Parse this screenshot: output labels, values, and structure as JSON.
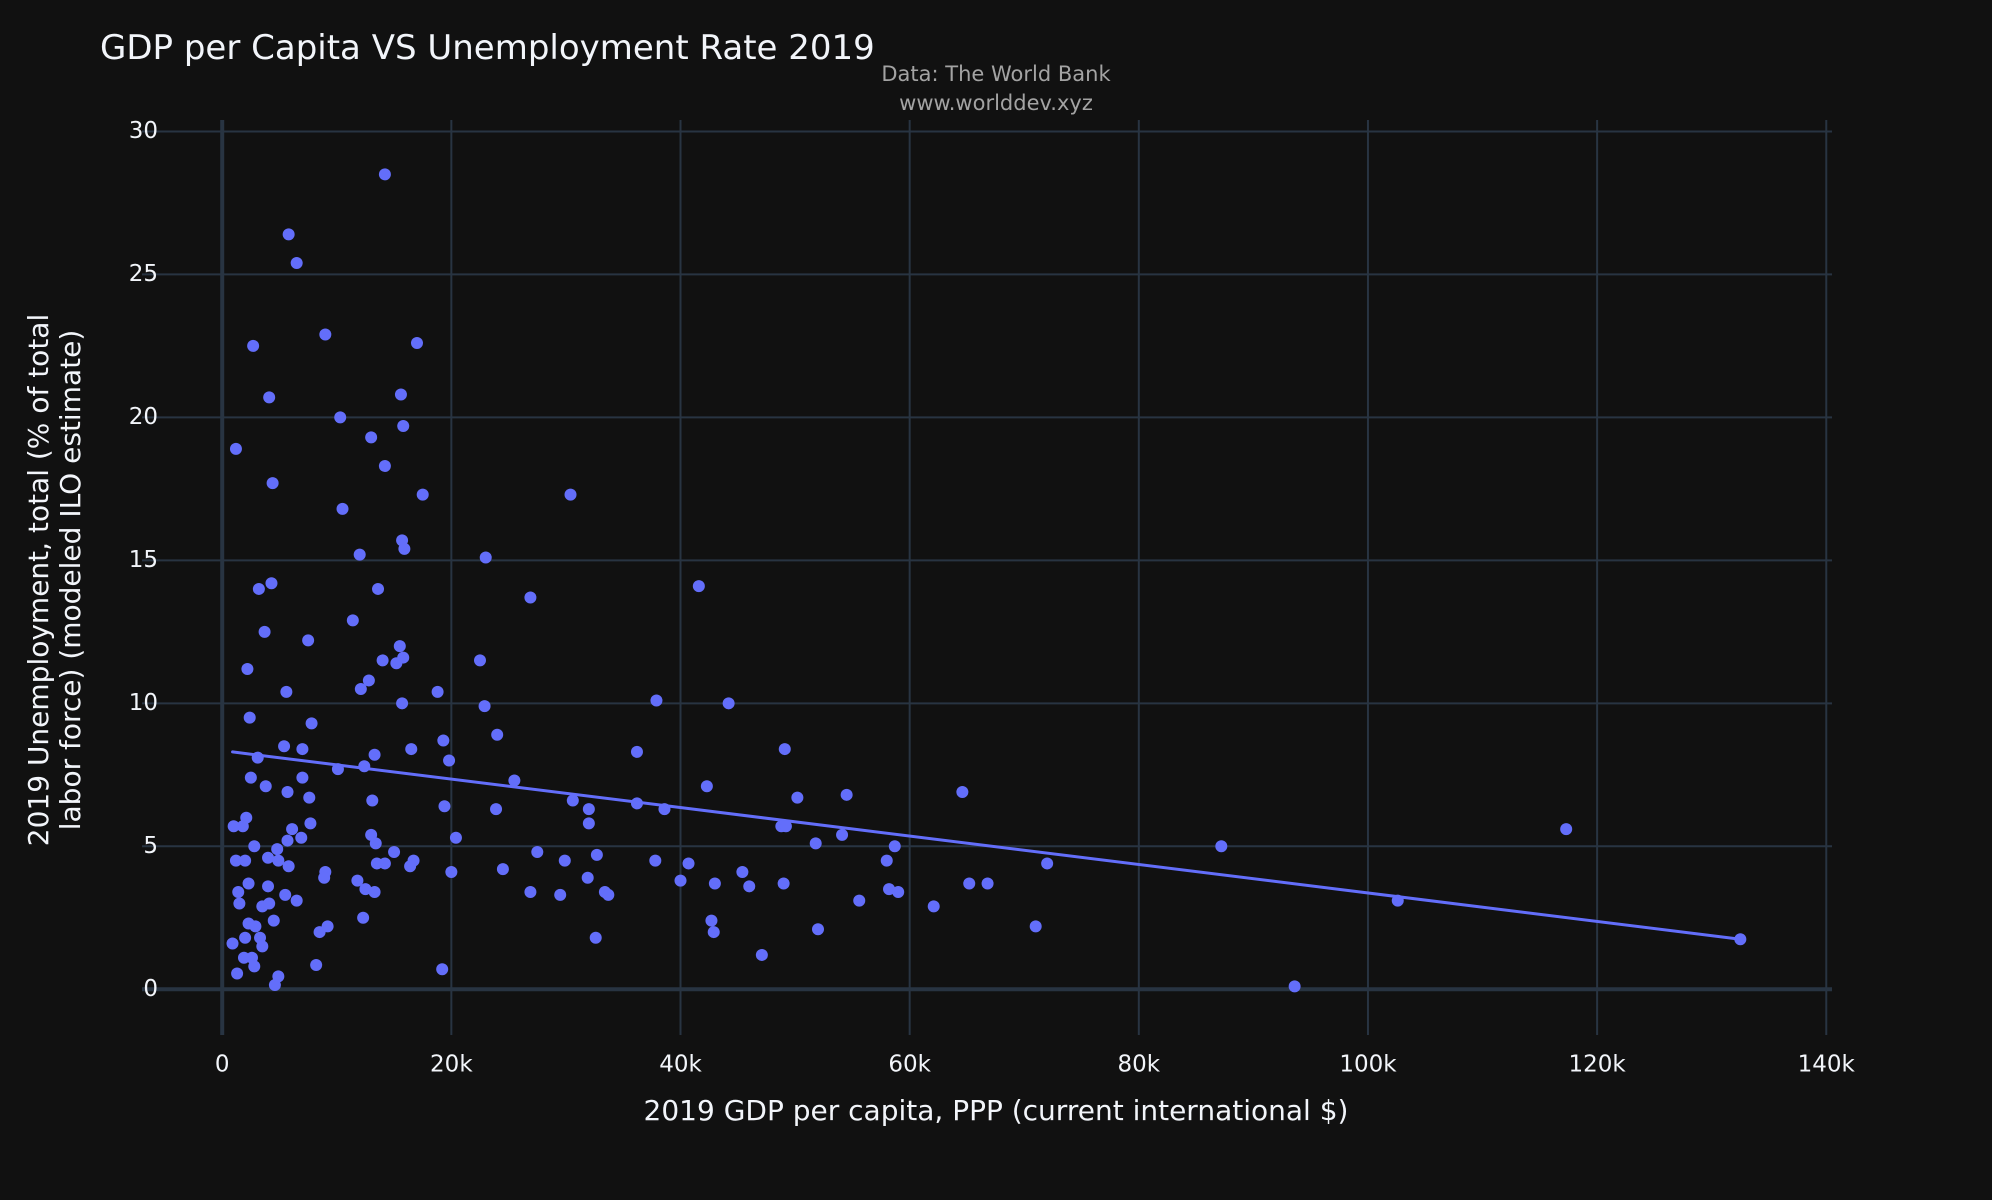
{
  "chart_data": {
    "type": "scatter",
    "title": "GDP per Capita VS Unemployment Rate 2019",
    "source": {
      "line1": "Data: The World Bank",
      "line2": "www.worlddev.xyz"
    },
    "xlabel": "2019 GDP per capita, PPP (current international $)",
    "ylabel_line1": "2019 Unemployment, total (% of total",
    "ylabel_line2": "labor force) (modeled ILO estimate)",
    "xlim": [
      -7000,
      140500
    ],
    "ylim": [
      -1.6,
      30.4
    ],
    "x_ticks": [
      0,
      20000,
      40000,
      60000,
      80000,
      100000,
      120000,
      140000
    ],
    "x_tick_labels": [
      "0",
      "20k",
      "40k",
      "60k",
      "80k",
      "100k",
      "120k",
      "140k"
    ],
    "y_ticks": [
      0,
      5,
      10,
      15,
      20,
      25,
      30
    ],
    "y_tick_labels": [
      "0",
      "5",
      "10",
      "15",
      "20",
      "25",
      "30"
    ],
    "grid": true,
    "colors": {
      "background": "#111111",
      "grid": "#283442",
      "marker": "#636efa",
      "trendline": "#636efa",
      "text": "#f2f5fa",
      "source_text": "#a3a3a3"
    },
    "trendline": {
      "x": [
        900,
        132500
      ],
      "y": [
        8.3,
        1.75
      ]
    },
    "series": [
      {
        "points": [
          [
            14200,
            28.5
          ],
          [
            5800,
            26.4
          ],
          [
            6500,
            25.4
          ],
          [
            9000,
            22.9
          ],
          [
            17000,
            22.6
          ],
          [
            2700,
            22.5
          ],
          [
            15600,
            20.8
          ],
          [
            4100,
            20.7
          ],
          [
            10300,
            20.0
          ],
          [
            15800,
            19.7
          ],
          [
            13000,
            19.3
          ],
          [
            1200,
            18.9
          ],
          [
            14200,
            18.3
          ],
          [
            4400,
            17.7
          ],
          [
            17500,
            17.3
          ],
          [
            30400,
            17.3
          ],
          [
            10500,
            16.8
          ],
          [
            15700,
            15.7
          ],
          [
            15900,
            15.4
          ],
          [
            12000,
            15.2
          ],
          [
            23000,
            15.1
          ],
          [
            4300,
            14.2
          ],
          [
            41600,
            14.1
          ],
          [
            3200,
            14.0
          ],
          [
            13600,
            14.0
          ],
          [
            26900,
            13.7
          ],
          [
            11400,
            12.9
          ],
          [
            3700,
            12.5
          ],
          [
            7500,
            12.2
          ],
          [
            15500,
            12.0
          ],
          [
            15800,
            11.6
          ],
          [
            14000,
            11.5
          ],
          [
            22500,
            11.5
          ],
          [
            15200,
            11.4
          ],
          [
            2200,
            11.2
          ],
          [
            12800,
            10.8
          ],
          [
            12100,
            10.5
          ],
          [
            5600,
            10.4
          ],
          [
            18800,
            10.4
          ],
          [
            37900,
            10.1
          ],
          [
            15700,
            10.0
          ],
          [
            44200,
            10.0
          ],
          [
            22900,
            9.9
          ],
          [
            2400,
            9.5
          ],
          [
            7800,
            9.3
          ],
          [
            24000,
            8.9
          ],
          [
            19300,
            8.7
          ],
          [
            5400,
            8.5
          ],
          [
            7000,
            8.4
          ],
          [
            16500,
            8.4
          ],
          [
            49100,
            8.4
          ],
          [
            36200,
            8.3
          ],
          [
            13300,
            8.2
          ],
          [
            3100,
            8.1
          ],
          [
            19800,
            8.0
          ],
          [
            12400,
            7.8
          ],
          [
            10100,
            7.7
          ],
          [
            2500,
            7.4
          ],
          [
            7000,
            7.4
          ],
          [
            25500,
            7.3
          ],
          [
            3800,
            7.1
          ],
          [
            42300,
            7.1
          ],
          [
            5700,
            6.9
          ],
          [
            64600,
            6.9
          ],
          [
            54500,
            6.8
          ],
          [
            7600,
            6.7
          ],
          [
            50200,
            6.7
          ],
          [
            30600,
            6.6
          ],
          [
            13100,
            6.6
          ],
          [
            36200,
            6.5
          ],
          [
            19400,
            6.4
          ],
          [
            23900,
            6.3
          ],
          [
            32000,
            6.3
          ],
          [
            38600,
            6.3
          ],
          [
            2100,
            6.0
          ],
          [
            7700,
            5.8
          ],
          [
            32000,
            5.8
          ],
          [
            1000,
            5.7
          ],
          [
            1800,
            5.7
          ],
          [
            6100,
            5.6
          ],
          [
            48800,
            5.7
          ],
          [
            49200,
            5.7
          ],
          [
            20400,
            5.3
          ],
          [
            54100,
            5.4
          ],
          [
            13000,
            5.4
          ],
          [
            51800,
            5.1
          ],
          [
            6900,
            5.3
          ],
          [
            5700,
            5.2
          ],
          [
            13400,
            5.1
          ],
          [
            58700,
            5.0
          ],
          [
            87200,
            5.0
          ],
          [
            2800,
            5.0
          ],
          [
            4800,
            4.9
          ],
          [
            15000,
            4.8
          ],
          [
            27500,
            4.8
          ],
          [
            32700,
            4.7
          ],
          [
            4000,
            4.6
          ],
          [
            1200,
            4.5
          ],
          [
            2000,
            4.5
          ],
          [
            4900,
            4.5
          ],
          [
            16700,
            4.5
          ],
          [
            29900,
            4.5
          ],
          [
            37800,
            4.5
          ],
          [
            40700,
            4.4
          ],
          [
            58000,
            4.5
          ],
          [
            72000,
            4.4
          ],
          [
            117300,
            5.6
          ],
          [
            13500,
            4.4
          ],
          [
            14200,
            4.4
          ],
          [
            5800,
            4.3
          ],
          [
            16400,
            4.3
          ],
          [
            24500,
            4.2
          ],
          [
            9000,
            4.1
          ],
          [
            20000,
            4.1
          ],
          [
            45400,
            4.1
          ],
          [
            8900,
            3.9
          ],
          [
            11800,
            3.8
          ],
          [
            31900,
            3.9
          ],
          [
            40000,
            3.8
          ],
          [
            43000,
            3.7
          ],
          [
            49000,
            3.7
          ],
          [
            46000,
            3.6
          ],
          [
            65200,
            3.7
          ],
          [
            66800,
            3.7
          ],
          [
            2300,
            3.7
          ],
          [
            4000,
            3.6
          ],
          [
            12500,
            3.5
          ],
          [
            1400,
            3.4
          ],
          [
            13300,
            3.4
          ],
          [
            26900,
            3.4
          ],
          [
            33400,
            3.4
          ],
          [
            33700,
            3.3
          ],
          [
            29500,
            3.3
          ],
          [
            58200,
            3.5
          ],
          [
            59000,
            3.4
          ],
          [
            5500,
            3.3
          ],
          [
            6500,
            3.1
          ],
          [
            4100,
            3.0
          ],
          [
            1500,
            3.0
          ],
          [
            3500,
            2.9
          ],
          [
            55600,
            3.1
          ],
          [
            62100,
            2.9
          ],
          [
            102600,
            3.1
          ],
          [
            4500,
            2.4
          ],
          [
            12300,
            2.5
          ],
          [
            42700,
            2.4
          ],
          [
            2300,
            2.3
          ],
          [
            9200,
            2.2
          ],
          [
            2900,
            2.2
          ],
          [
            52000,
            2.1
          ],
          [
            71000,
            2.2
          ],
          [
            8500,
            2.0
          ],
          [
            42900,
            2.0
          ],
          [
            2000,
            1.8
          ],
          [
            3300,
            1.8
          ],
          [
            32600,
            1.8
          ],
          [
            900,
            1.6
          ],
          [
            3500,
            1.5
          ],
          [
            1900,
            1.1
          ],
          [
            2600,
            1.1
          ],
          [
            47100,
            1.2
          ],
          [
            132500,
            1.75
          ],
          [
            8200,
            0.85
          ],
          [
            19200,
            0.7
          ],
          [
            2800,
            0.8
          ],
          [
            1300,
            0.55
          ],
          [
            4900,
            0.45
          ],
          [
            4600,
            0.15
          ],
          [
            93600,
            0.1
          ]
        ]
      }
    ]
  }
}
